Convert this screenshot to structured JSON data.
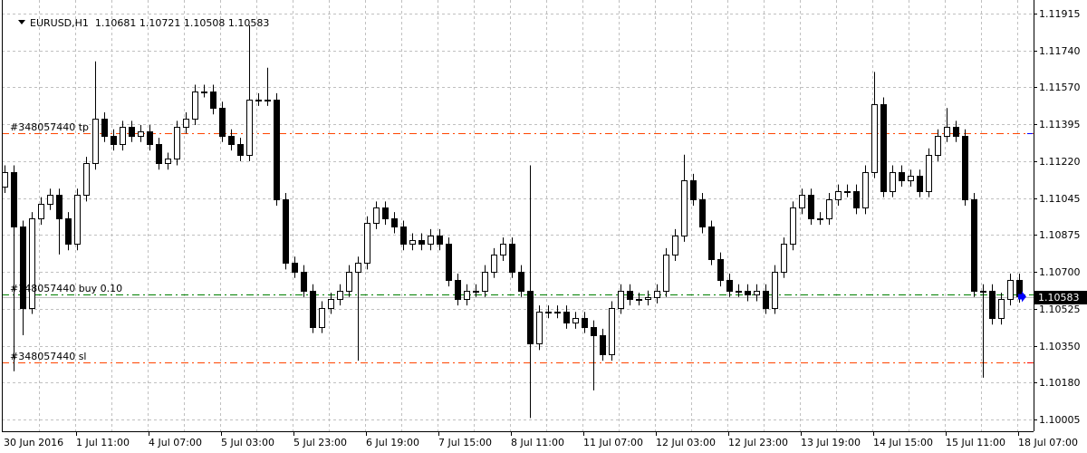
{
  "header": {
    "symbol": "EURUSD,H1",
    "ohlc": "1.10681 1.10721 1.10508 1.10583",
    "menu_icon": "triangle-down-icon"
  },
  "colors": {
    "grid": "#c0c0c0",
    "tp_sl_line": "#ff4500",
    "entry_line": "#008000",
    "bid_line": "#c0c0c0",
    "bull_body": "#ffffff",
    "bear_body": "#000000",
    "current_price_bg": "#000000",
    "arrow": "#0000ff"
  },
  "price_axis": {
    "ticks": [
      "1.11915",
      "1.11740",
      "1.11570",
      "1.11395",
      "1.11220",
      "1.11045",
      "1.10875",
      "1.10700",
      "1.10525",
      "1.10350",
      "1.10180",
      "1.10005"
    ],
    "current_price": "1.10583"
  },
  "time_axis": {
    "labels": [
      "30 Jun 2016",
      "1 Jul 11:00",
      "4 Jul 07:00",
      "5 Jul 03:00",
      "5 Jul 23:00",
      "6 Jul 19:00",
      "7 Jul 15:00",
      "8 Jul 11:00",
      "11 Jul 07:00",
      "12 Jul 03:00",
      "12 Jul 23:00",
      "13 Jul 19:00",
      "14 Jul 15:00",
      "15 Jul 11:00",
      "18 Jul 07:00"
    ]
  },
  "orders": {
    "tp": {
      "label": "#348057440 tp",
      "price": 1.11352
    },
    "entry": {
      "label": "#348057440 buy 0.10",
      "price": 1.10588
    },
    "sl": {
      "label": "#348057440 sl",
      "price": 1.10271
    }
  },
  "chart_data": {
    "type": "candlestick",
    "symbol": "EURUSD",
    "timeframe": "H1",
    "ylim": [
      1.0996,
      1.1199
    ],
    "grid": true,
    "first_open": 1.111,
    "close": [
      1.1117,
      1.1091,
      1.1053,
      1.1095,
      1.1102,
      1.1106,
      1.1095,
      1.1083,
      1.1106,
      1.1121,
      1.1142,
      1.1134,
      1.113,
      1.1138,
      1.1134,
      1.1136,
      1.113,
      1.1121,
      1.1123,
      1.1138,
      1.1142,
      1.1155,
      1.1155,
      1.1147,
      1.1134,
      1.113,
      1.1125,
      1.1151,
      1.1151,
      1.1151,
      1.1104,
      1.1074,
      1.107,
      1.1061,
      1.1044,
      1.1053,
      1.1057,
      1.1061,
      1.107,
      1.1074,
      1.1093,
      1.11,
      1.1095,
      1.1091,
      1.1083,
      1.1085,
      1.1083,
      1.1087,
      1.1083,
      1.1066,
      1.1057,
      1.1061,
      1.1061,
      1.107,
      1.1078,
      1.1083,
      1.107,
      1.1061,
      1.1036,
      1.1051,
      1.1051,
      1.1051,
      1.1046,
      1.1048,
      1.1044,
      1.104,
      1.1031,
      1.1053,
      1.1061,
      1.1057,
      1.1057,
      1.1058,
      1.1061,
      1.1078,
      1.1087,
      1.1113,
      1.1104,
      1.1091,
      1.1076,
      1.1066,
      1.1061,
      1.1061,
      1.1059,
      1.1061,
      1.1053,
      1.107,
      1.1083,
      1.11,
      1.1106,
      1.1095,
      1.1095,
      1.1104,
      1.1108,
      1.1108,
      1.11,
      1.1117,
      1.1149,
      1.1108,
      1.1117,
      1.1113,
      1.1115,
      1.1108,
      1.1125,
      1.1134,
      1.1138,
      1.1134,
      1.1104,
      1.1061,
      1.1061,
      1.1048,
      1.1057,
      1.1066,
      1.10583
    ],
    "default_wick": 0.0003,
    "extremes": [
      {
        "i": 1,
        "low": 1.1023
      },
      {
        "i": 2,
        "low": 1.104
      },
      {
        "i": 6,
        "low": 1.1078
      },
      {
        "i": 10,
        "high": 1.1169
      },
      {
        "i": 27,
        "high": 1.1186
      },
      {
        "i": 29,
        "high": 1.1166
      },
      {
        "i": 39,
        "low": 1.1028
      },
      {
        "i": 58,
        "high": 1.112
      },
      {
        "i": 58,
        "low": 1.1001
      },
      {
        "i": 65,
        "low": 1.1014
      },
      {
        "i": 75,
        "high": 1.1125
      },
      {
        "i": 96,
        "high": 1.1164
      },
      {
        "i": 104,
        "high": 1.1147
      },
      {
        "i": 108,
        "low": 1.102
      }
    ]
  }
}
